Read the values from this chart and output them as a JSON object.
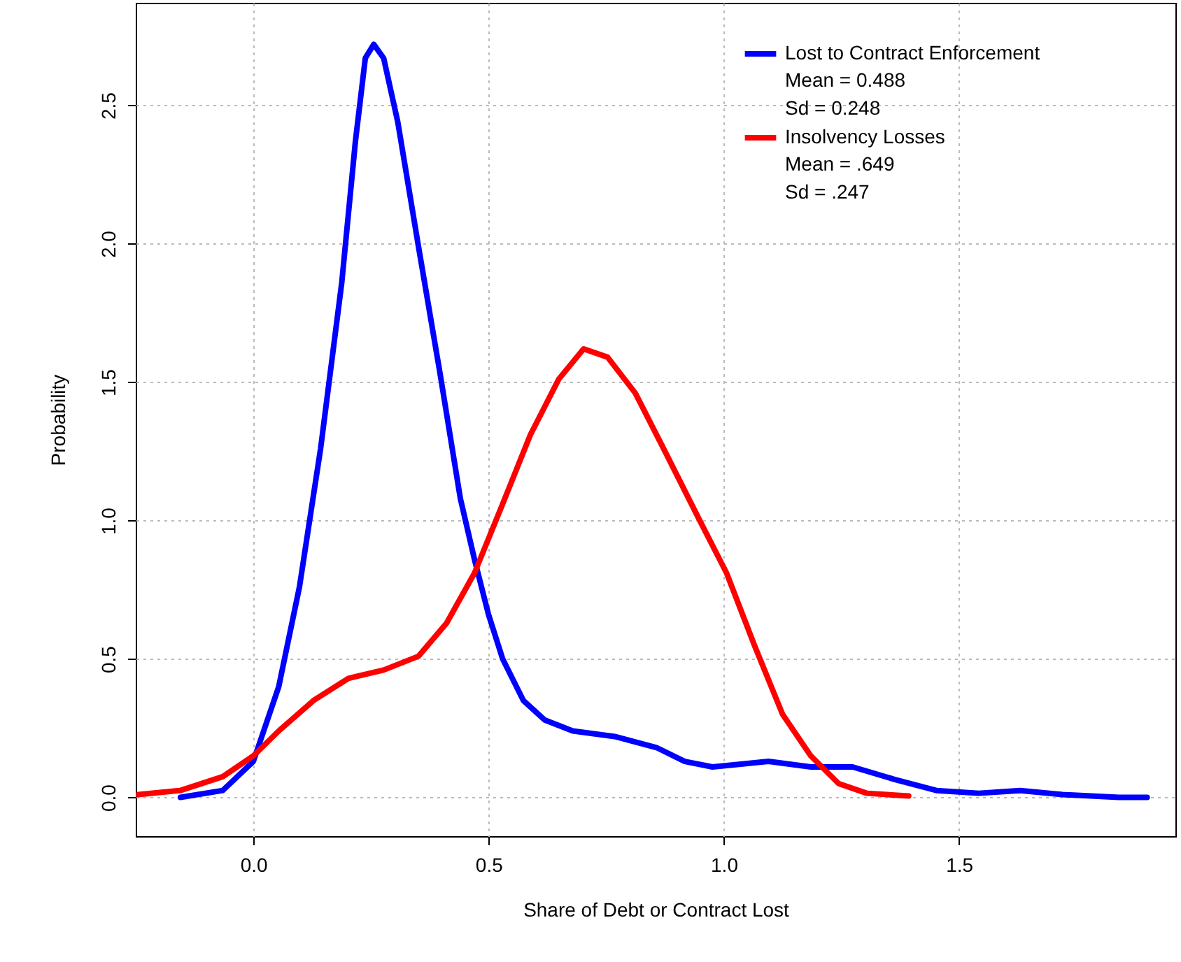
{
  "chart_data": {
    "type": "line",
    "xlabel": "Share of Debt or Contract Lost",
    "ylabel": "Probability",
    "xlim": [
      -0.25,
      1.96
    ],
    "ylim": [
      -0.14,
      2.87
    ],
    "xticks": [
      {
        "value": 0,
        "label": "0.0"
      },
      {
        "value": 0.5,
        "label": "0.5"
      },
      {
        "value": 1,
        "label": "1.0"
      },
      {
        "value": 1.5,
        "label": "1.5"
      }
    ],
    "yticks": [
      {
        "value": 0,
        "label": "0.0"
      },
      {
        "value": 0.5,
        "label": "0.5"
      },
      {
        "value": 1,
        "label": "1.0"
      },
      {
        "value": 1.5,
        "label": "1.5"
      },
      {
        "value": 2,
        "label": "2.0"
      },
      {
        "value": 2.5,
        "label": "2.5"
      }
    ],
    "grid": true,
    "legend": "top right",
    "line_style": "solid",
    "marker": "none",
    "annotations": [
      "Mean = 0.488",
      "Sd = 0.248",
      "Mean = .649",
      "Sd = .247"
    ],
    "series": [
      {
        "name": "Lost to Contract Enforcement",
        "color": "#0000ff",
        "x": [
          -0.155,
          -0.065,
          0,
          0.054,
          0.098,
          0.143,
          0.188,
          0.217,
          0.238,
          0.256,
          0.277,
          0.307,
          0.351,
          0.396,
          0.44,
          0.47,
          0.5,
          0.53,
          0.574,
          0.619,
          0.679,
          0.768,
          0.857,
          0.917,
          0.976,
          1.036,
          1.095,
          1.185,
          1.274,
          1.363,
          1.452,
          1.542,
          1.63,
          1.72,
          1.84,
          1.9
        ],
        "values": [
          0,
          0.025,
          0.13,
          0.4,
          0.76,
          1.26,
          1.86,
          2.37,
          2.67,
          2.72,
          2.67,
          2.44,
          1.99,
          1.54,
          1.08,
          0.86,
          0.66,
          0.5,
          0.35,
          0.28,
          0.24,
          0.22,
          0.18,
          0.13,
          0.11,
          0.12,
          0.13,
          0.11,
          0.11,
          0.065,
          0.025,
          0.015,
          0.025,
          0.01,
          0,
          0
        ]
      },
      {
        "name": "Insolvency Losses",
        "color": "#ff0000",
        "x": [
          -0.244,
          -0.155,
          -0.065,
          0,
          0.054,
          0.128,
          0.202,
          0.277,
          0.351,
          0.411,
          0.47,
          0.53,
          0.589,
          0.649,
          0.702,
          0.753,
          0.812,
          0.872,
          0.946,
          1.006,
          1.065,
          1.125,
          1.185,
          1.244,
          1.304,
          1.393
        ],
        "values": [
          0.01,
          0.025,
          0.075,
          0.15,
          0.24,
          0.35,
          0.43,
          0.46,
          0.51,
          0.63,
          0.81,
          1.06,
          1.31,
          1.51,
          1.62,
          1.59,
          1.46,
          1.26,
          1.01,
          0.81,
          0.55,
          0.3,
          0.15,
          0.05,
          0.015,
          0.005
        ]
      }
    ]
  }
}
